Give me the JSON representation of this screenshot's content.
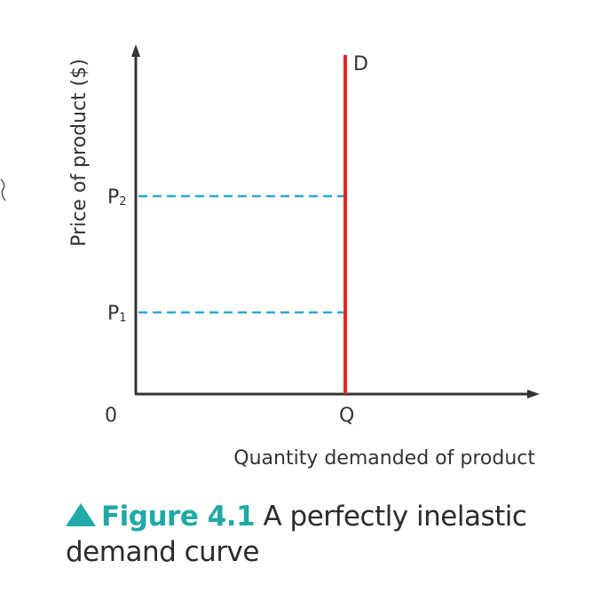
{
  "chart_data": {
    "type": "line",
    "ylabel": "Price of product ($)",
    "xlabel": "Quantity demanded of product",
    "origin_label": "0",
    "curve_label": "D",
    "x_tick_label": "Q",
    "price_levels": [
      {
        "label": "P",
        "subscript": "2",
        "level": 2
      },
      {
        "label": "P",
        "subscript": "1",
        "level": 1
      }
    ],
    "series": [
      {
        "name": "D",
        "points": [
          {
            "x": "Q",
            "y": "P1"
          },
          {
            "x": "Q",
            "y": "P2"
          }
        ],
        "shape": "vertical"
      }
    ],
    "colors": {
      "demand_curve": "#e5261f",
      "guide_lines": "#2aa7d6",
      "axes": "#333333"
    }
  },
  "caption": {
    "figure_label": "Figure 4.1",
    "text": "A perfectly inelastic demand curve"
  }
}
